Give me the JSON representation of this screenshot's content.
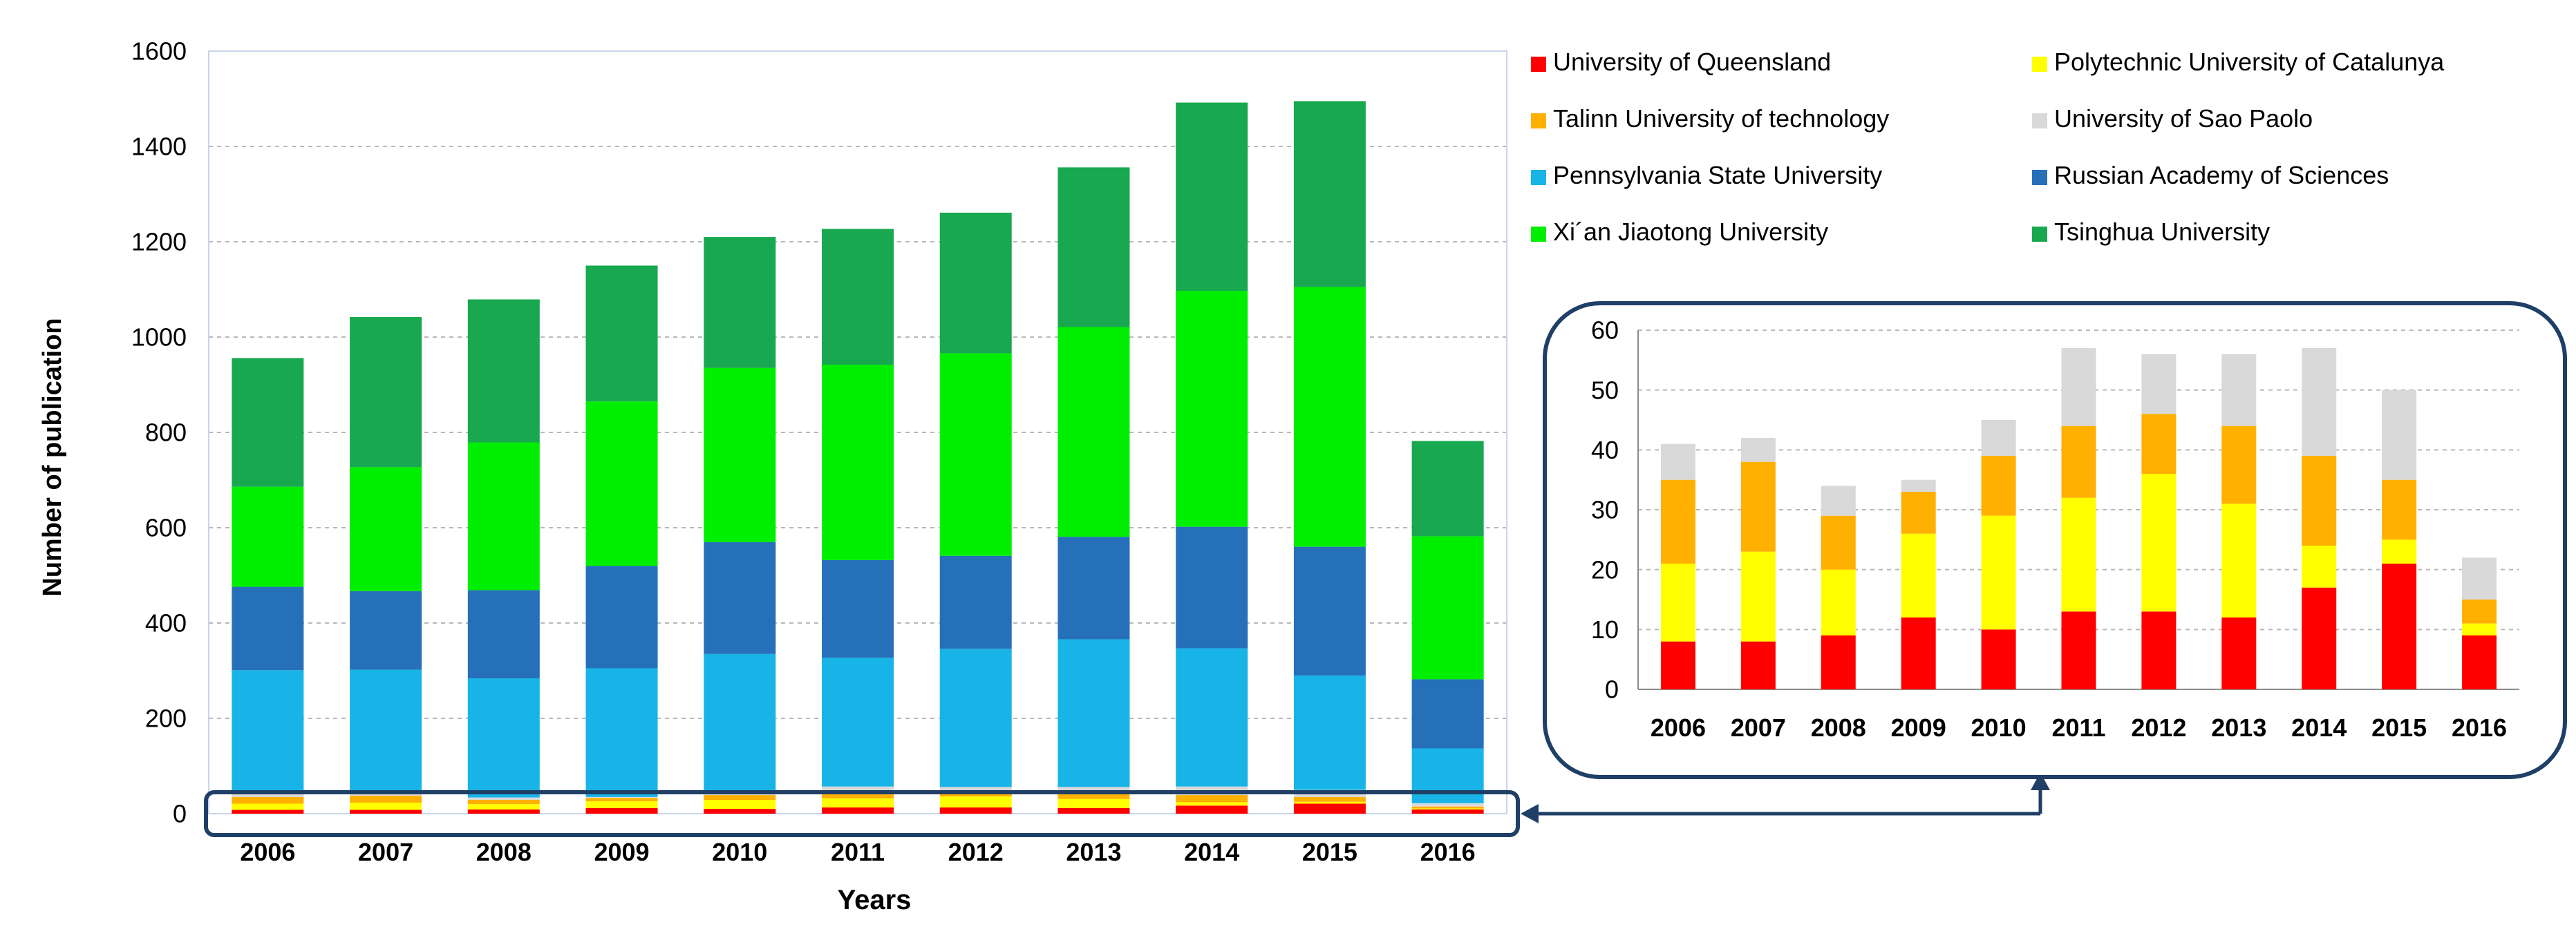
{
  "chart_data": [
    {
      "type": "bar",
      "stacked": true,
      "categories": [
        "2006",
        "2007",
        "2008",
        "2009",
        "2010",
        "2011",
        "2012",
        "2013",
        "2014",
        "2015",
        "2016"
      ],
      "xlabel": "Years",
      "ylabel": "Number of publication",
      "ylim": [
        0,
        1600
      ],
      "yticks": [
        "0",
        "200",
        "400",
        "600",
        "800",
        "1000",
        "1200",
        "1400",
        "1600"
      ],
      "grid": true,
      "series": [
        {
          "name": "University of Queensland",
          "color": "#ff0000",
          "values": [
            8,
            8,
            9,
            12,
            10,
            13,
            13,
            12,
            17,
            21,
            9
          ]
        },
        {
          "name": "Polytechnic University of Catalunya",
          "color": "#ffff00",
          "values": [
            13,
            15,
            11,
            14,
            19,
            19,
            23,
            19,
            7,
            4,
            2
          ]
        },
        {
          "name": "Talinn University of technology",
          "color": "#ffb000",
          "values": [
            14,
            15,
            9,
            7,
            10,
            12,
            10,
            13,
            15,
            10,
            4
          ]
        },
        {
          "name": "University of Sao Paolo",
          "color": "#d9d9d9",
          "values": [
            6,
            4,
            5,
            2,
            6,
            13,
            10,
            12,
            18,
            15,
            7
          ]
        },
        {
          "name": "Pennsylvania State University",
          "color": "#18b4e8",
          "values": [
            260,
            260,
            250,
            270,
            290,
            270,
            290,
            310,
            290,
            240,
            115
          ]
        },
        {
          "name": "Russian Academy of Sciences",
          "color": "#2670b9",
          "values": [
            175,
            165,
            185,
            215,
            235,
            205,
            195,
            215,
            255,
            270,
            145
          ]
        },
        {
          "name": "Xi´an Jiaotong University",
          "color": "#00ee00",
          "values": [
            210,
            260,
            310,
            345,
            365,
            410,
            425,
            440,
            495,
            545,
            300
          ]
        },
        {
          "name": "Tsinghua University",
          "color": "#18a850",
          "values": [
            270,
            315,
            300,
            285,
            275,
            285,
            295,
            335,
            395,
            390,
            200
          ]
        }
      ],
      "legend": "right",
      "highlight_band": [
        0,
        40
      ]
    },
    {
      "type": "bar",
      "stacked": true,
      "inset": true,
      "categories": [
        "2006",
        "2007",
        "2008",
        "2009",
        "2010",
        "2011",
        "2012",
        "2013",
        "2014",
        "2015",
        "2016"
      ],
      "ylim": [
        0,
        60
      ],
      "yticks": [
        "0",
        "10",
        "20",
        "30",
        "40",
        "50",
        "60"
      ],
      "grid": true,
      "series": [
        {
          "name": "University of Queensland",
          "color": "#ff0000",
          "values": [
            8,
            8,
            9,
            12,
            10,
            13,
            13,
            12,
            17,
            21,
            9
          ]
        },
        {
          "name": "Polytechnic University of Catalunya",
          "color": "#ffff00",
          "values": [
            13,
            15,
            11,
            14,
            19,
            19,
            23,
            19,
            7,
            4,
            2
          ]
        },
        {
          "name": "Talinn University of technology",
          "color": "#ffb000",
          "values": [
            14,
            15,
            9,
            7,
            10,
            12,
            10,
            13,
            15,
            10,
            4
          ]
        },
        {
          "name": "University of Sao Paolo",
          "color": "#d9d9d9",
          "values": [
            6,
            4,
            5,
            2,
            6,
            13,
            10,
            12,
            18,
            15,
            7
          ]
        }
      ]
    }
  ],
  "legend_items": [
    {
      "label": "University of Queensland",
      "color": "#ff0000"
    },
    {
      "label": "Polytechnic University of Catalunya",
      "color": "#ffff00"
    },
    {
      "label": "Talinn University of technology",
      "color": "#ffb000"
    },
    {
      "label": "University of Sao Paolo",
      "color": "#d9d9d9"
    },
    {
      "label": "Pennsylvania State University",
      "color": "#18b4e8"
    },
    {
      "label": "Russian Academy of Sciences",
      "color": "#2670b9"
    },
    {
      "label": "Xi´an Jiaotong University",
      "color": "#00ee00"
    },
    {
      "label": "Tsinghua University",
      "color": "#18a850"
    }
  ],
  "colors": {
    "frame": "#1f3f66",
    "grid": "#b8b8b8",
    "axis": "#8c8c8c",
    "text": "#000000"
  }
}
